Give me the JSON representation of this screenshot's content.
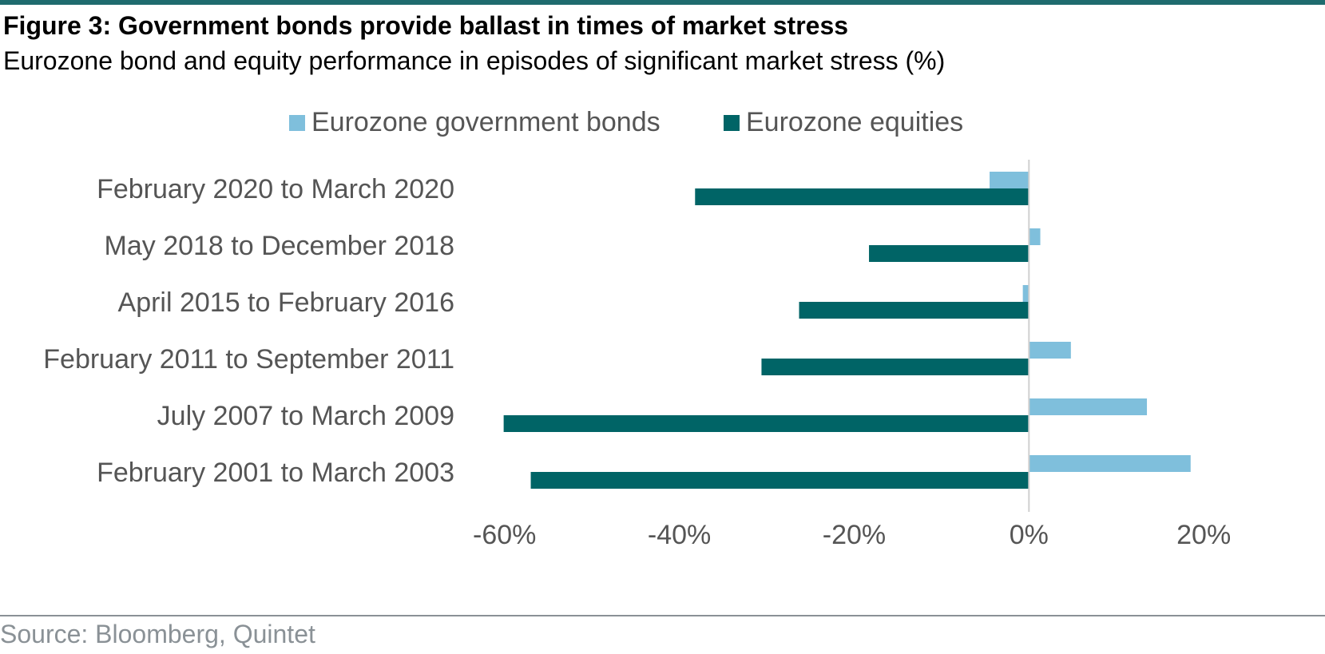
{
  "title": "Figure 3: Government bonds provide ballast in times of market stress",
  "subtitle": "Eurozone bond and equity performance in episodes of significant market stress (%)",
  "source": "Source: Bloomberg, Quintet",
  "colors": {
    "bonds": "#7fbfdc",
    "equities": "#006466",
    "rule": "#1f6b6e",
    "text": "#555555"
  },
  "chart_data": {
    "type": "bar",
    "orientation": "horizontal",
    "categories": [
      "February 2020 to March 2020",
      "May 2018 to December 2018",
      "April 2015 to February 2016",
      "February 2011 to September 2011",
      "July 2007 to March 2009",
      "February 2001 to March 2003"
    ],
    "series": [
      {
        "name": "Eurozone government bonds",
        "color": "#7fbfdc",
        "values": [
          -4.5,
          1.3,
          -0.7,
          4.8,
          13.5,
          18.5
        ]
      },
      {
        "name": "Eurozone equities",
        "color": "#006466",
        "values": [
          -38.2,
          -18.3,
          -26.3,
          -30.6,
          -60.1,
          -57.0
        ]
      }
    ],
    "xlim": [
      -65,
      23
    ],
    "xticks": [
      "-60%",
      "-40%",
      "-20%",
      "0%",
      "20%"
    ],
    "xtick_values": [
      -60,
      -40,
      -20,
      0,
      20
    ],
    "legend": "top-center",
    "grid": false
  }
}
